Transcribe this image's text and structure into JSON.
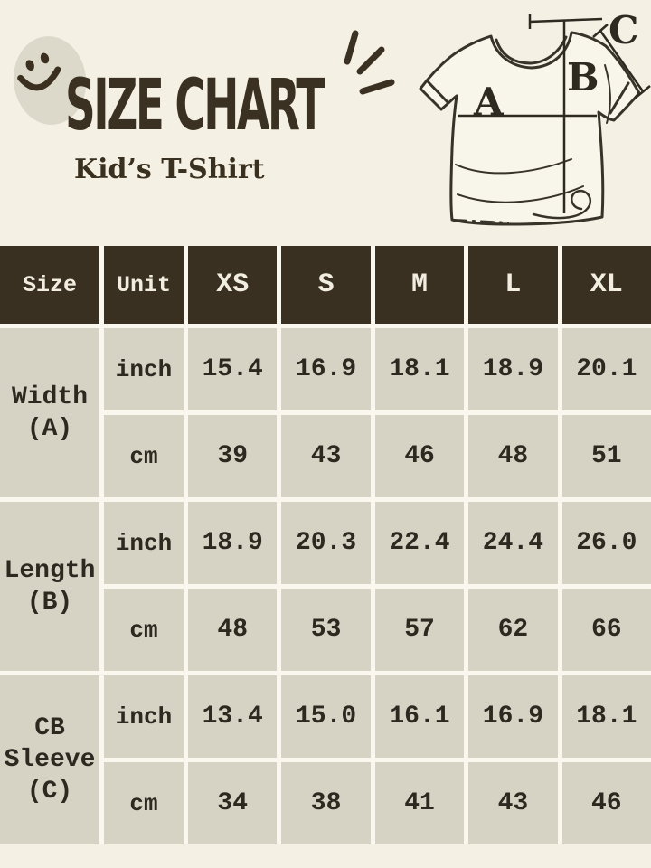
{
  "page": {
    "title": "SIZE CHART",
    "subtitle": "Kid’s T-Shirt",
    "colors": {
      "background": "#f4f0e3",
      "title_brown": "#3b3122",
      "table_header_bg": "#3a3021",
      "table_header_text": "#f1eee1",
      "cell_bg": "#d6d2c4",
      "cell_text": "#2d2920",
      "smiley_fill": "#dcd9cb"
    }
  },
  "tshirt": {
    "labels": [
      "A",
      "B",
      "C"
    ]
  },
  "size_table": {
    "columns": [
      "Size",
      "Unit",
      "XS",
      "S",
      "M",
      "L",
      "XL"
    ],
    "sections": [
      {
        "id": "width-a",
        "label_lines": [
          "Width",
          "(A)"
        ],
        "rows": [
          {
            "unit": "inch",
            "values": [
              "15.4",
              "16.9",
              "18.1",
              "18.9",
              "20.1"
            ]
          },
          {
            "unit": "cm",
            "values": [
              "39",
              "43",
              "46",
              "48",
              "51"
            ]
          }
        ]
      },
      {
        "id": "length-b",
        "label_lines": [
          "Length",
          "(B)"
        ],
        "rows": [
          {
            "unit": "inch",
            "values": [
              "18.9",
              "20.3",
              "22.4",
              "24.4",
              "26.0"
            ]
          },
          {
            "unit": "cm",
            "values": [
              "48",
              "53",
              "57",
              "62",
              "66"
            ]
          }
        ]
      },
      {
        "id": "cb-sleeve-c",
        "label_lines": [
          "CB",
          "Sleeve",
          "(C)"
        ],
        "rows": [
          {
            "unit": "inch",
            "values": [
              "13.4",
              "15.0",
              "16.1",
              "16.9",
              "18.1"
            ]
          },
          {
            "unit": "cm",
            "values": [
              "34",
              "38",
              "41",
              "43",
              "46"
            ]
          }
        ]
      }
    ]
  },
  "chart_data": {
    "type": "table",
    "title": "SIZE CHART",
    "subtitle": "Kid's T-Shirt",
    "columns": [
      "Size",
      "Unit",
      "XS",
      "S",
      "M",
      "L",
      "XL"
    ],
    "rows": [
      [
        "Width (A)",
        "inch",
        15.4,
        16.9,
        18.1,
        18.9,
        20.1
      ],
      [
        "Width (A)",
        "cm",
        39,
        43,
        46,
        48,
        51
      ],
      [
        "Length (B)",
        "inch",
        18.9,
        20.3,
        22.4,
        24.4,
        26.0
      ],
      [
        "Length (B)",
        "cm",
        48,
        53,
        57,
        62,
        66
      ],
      [
        "CB Sleeve (C)",
        "inch",
        13.4,
        15.0,
        16.1,
        16.9,
        18.1
      ],
      [
        "CB Sleeve (C)",
        "cm",
        34,
        38,
        41,
        43,
        46
      ]
    ]
  }
}
